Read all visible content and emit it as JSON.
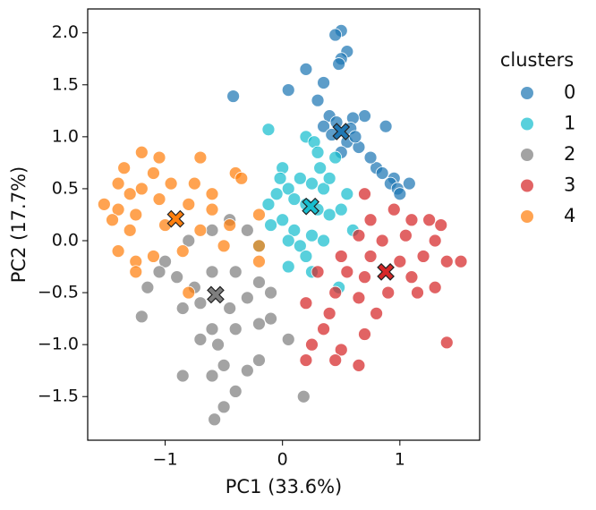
{
  "chart_data": {
    "type": "scatter",
    "xlabel": "PC1 (33.6%)",
    "ylabel": "PC2 (17.7%)",
    "legend_title": "clusters",
    "legend_position": "right",
    "xlim": [
      -1.66,
      1.68
    ],
    "ylim": [
      -1.92,
      2.23
    ],
    "xticks": [
      {
        "value": -1,
        "label": "−1"
      },
      0,
      1
    ],
    "yticks": [
      {
        "value": -1.5,
        "label": "−1.5"
      },
      {
        "value": -1,
        "label": "−1.0"
      },
      {
        "value": -0.5,
        "label": "−0.5"
      },
      {
        "value": 0,
        "label": "0.0"
      },
      0.5,
      {
        "value": 1,
        "label": "1.0"
      },
      1.5,
      {
        "value": 2,
        "label": "2.0"
      }
    ],
    "series": [
      {
        "name": "0",
        "color": "#1f77b4",
        "x": [
          0.5,
          0.45,
          0.55,
          0.5,
          0.48,
          0.2,
          0.05,
          -0.42,
          0.35,
          0.3,
          0.7,
          0.88,
          0.6,
          0.4,
          0.35,
          0.55,
          0.65,
          0.5,
          0.8,
          0.85,
          0.95,
          0.92,
          0.98,
          1.0,
          1.08,
          0.75,
          0.42,
          0.58,
          0.46,
          0.62
        ],
        "y": [
          2.02,
          1.98,
          1.82,
          1.75,
          1.7,
          1.65,
          1.45,
          1.39,
          1.52,
          1.35,
          1.2,
          1.1,
          1.18,
          1.2,
          1.1,
          0.95,
          0.9,
          0.85,
          0.7,
          0.65,
          0.6,
          0.55,
          0.5,
          0.45,
          0.55,
          0.8,
          1.02,
          1.08,
          1.14,
          1.0
        ]
      },
      {
        "name": "1",
        "color": "#17becf",
        "x": [
          -0.12,
          0.2,
          0.27,
          0.3,
          0.45,
          0.0,
          0.15,
          0.25,
          0.35,
          0.05,
          -0.05,
          0.1,
          0.2,
          0.3,
          0.4,
          0.5,
          0.55,
          -0.12,
          -0.1,
          0.0,
          0.1,
          0.25,
          0.35,
          0.15,
          0.05,
          0.2,
          0.25,
          0.05,
          -0.2,
          0.48,
          0.6,
          0.4,
          -0.02,
          0.32
        ],
        "y": [
          1.07,
          1.0,
          0.95,
          0.85,
          0.8,
          0.7,
          0.6,
          0.55,
          0.5,
          0.5,
          0.45,
          0.4,
          0.35,
          0.3,
          0.25,
          0.3,
          0.45,
          0.35,
          0.15,
          0.2,
          0.1,
          0.05,
          0.0,
          -0.05,
          0.0,
          -0.15,
          -0.3,
          -0.25,
          -0.05,
          -0.45,
          0.1,
          0.6,
          0.6,
          0.7
        ]
      },
      {
        "name": "2",
        "color": "#7f7f7f",
        "x": [
          -0.45,
          -0.6,
          -0.8,
          -0.3,
          -1.0,
          -1.05,
          -1.15,
          -0.9,
          -0.75,
          -0.6,
          -0.4,
          -0.2,
          -0.1,
          -0.3,
          -0.45,
          -0.7,
          -0.85,
          -1.2,
          -0.6,
          -0.4,
          -0.2,
          -0.1,
          -0.7,
          -0.55,
          0.05,
          -0.5,
          -0.2,
          -0.85,
          -0.6,
          -0.4,
          -0.5,
          -0.58,
          0.18,
          -0.3
        ],
        "y": [
          0.2,
          0.1,
          0.0,
          0.1,
          -0.2,
          -0.3,
          -0.45,
          -0.35,
          -0.45,
          -0.3,
          -0.3,
          -0.4,
          -0.5,
          -0.55,
          -0.65,
          -0.6,
          -0.65,
          -0.73,
          -0.85,
          -0.85,
          -0.8,
          -0.75,
          -0.95,
          -1.0,
          -0.95,
          -1.2,
          -1.15,
          -1.3,
          -1.3,
          -1.45,
          -1.6,
          -1.72,
          -1.5,
          -1.25
        ]
      },
      {
        "name": "3",
        "color": "#d62728",
        "x": [
          0.7,
          0.95,
          0.75,
          1.1,
          1.25,
          1.35,
          0.65,
          0.85,
          1.05,
          1.3,
          0.5,
          0.75,
          1.0,
          1.2,
          1.4,
          1.52,
          0.3,
          0.55,
          0.7,
          1.1,
          1.3,
          0.45,
          0.65,
          0.9,
          1.15,
          0.2,
          0.4,
          0.8,
          0.35,
          0.7,
          0.25,
          0.5,
          0.65,
          0.45,
          1.4,
          0.2
        ],
        "y": [
          0.45,
          0.3,
          0.2,
          0.2,
          0.2,
          0.15,
          0.05,
          0.0,
          0.05,
          0.0,
          -0.15,
          -0.15,
          -0.2,
          -0.15,
          -0.2,
          -0.2,
          -0.3,
          -0.3,
          -0.35,
          -0.35,
          -0.45,
          -0.5,
          -0.55,
          -0.5,
          -0.5,
          -0.6,
          -0.7,
          -0.7,
          -0.85,
          -0.9,
          -1.0,
          -1.05,
          -1.2,
          -1.15,
          -0.98,
          -1.15
        ]
      },
      {
        "name": "4",
        "color": "#ff7f0e",
        "x": [
          -1.05,
          -1.2,
          -0.7,
          -1.35,
          -1.1,
          -0.4,
          -1.4,
          -1.2,
          -0.95,
          -0.75,
          -1.3,
          -1.05,
          -0.6,
          -0.35,
          -1.52,
          -1.4,
          -1.25,
          -0.8,
          -0.6,
          -0.2,
          -1.45,
          -1.3,
          -1.0,
          -0.7,
          -0.45,
          -1.4,
          -1.25,
          -1.1,
          -0.85,
          -0.5,
          -0.2,
          -1.25,
          -0.2,
          -0.8
        ],
        "y": [
          0.8,
          0.85,
          0.8,
          0.7,
          0.65,
          0.65,
          0.55,
          0.5,
          0.55,
          0.55,
          0.45,
          0.4,
          0.45,
          0.6,
          0.35,
          0.3,
          0.25,
          0.35,
          0.3,
          0.25,
          0.2,
          0.1,
          0.15,
          0.1,
          0.15,
          -0.1,
          -0.2,
          -0.15,
          -0.1,
          -0.05,
          -0.05,
          -0.3,
          -0.2,
          -0.5
        ]
      }
    ],
    "centroids": {
      "x": [
        0.5,
        0.24,
        -0.57,
        0.88,
        -0.91
      ],
      "y": [
        1.05,
        0.33,
        -0.52,
        -0.3,
        0.21
      ]
    }
  }
}
